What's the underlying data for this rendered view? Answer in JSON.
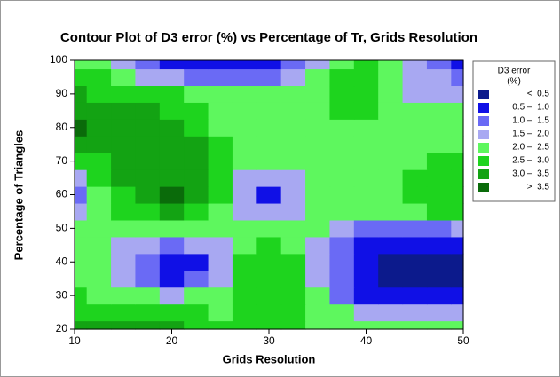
{
  "chart_data": {
    "type": "contour",
    "title": "Contour Plot of D3 error (%) vs Percentage of Tr, Grids Resolution",
    "x_label": "Grids Resolution",
    "y_label": "Percentage of Triangles",
    "xlim": [
      10,
      50
    ],
    "ylim": [
      20,
      100
    ],
    "xticks": [
      10,
      20,
      30,
      40,
      50
    ],
    "yticks": [
      20,
      30,
      40,
      50,
      60,
      70,
      80,
      90,
      100
    ],
    "x": [
      10,
      12.5,
      15,
      17.5,
      20,
      22.5,
      25,
      27.5,
      30,
      32.5,
      35,
      37.5,
      40,
      42.5,
      45,
      47.5,
      50
    ],
    "y": [
      20,
      25,
      30,
      35,
      40,
      45,
      50,
      55,
      60,
      65,
      70,
      75,
      80,
      85,
      90,
      95,
      100
    ],
    "z": [
      [
        3.2,
        3.2,
        3.1,
        3.0,
        3.0,
        2.8,
        2.6,
        2.6,
        2.7,
        2.6,
        2.3,
        2.2,
        2.2,
        2.2,
        2.2,
        2.2,
        2.2
      ],
      [
        2.8,
        2.8,
        2.7,
        2.7,
        2.6,
        2.6,
        2.4,
        2.6,
        2.7,
        2.6,
        2.3,
        2.0,
        1.8,
        1.8,
        1.8,
        1.8,
        1.8
      ],
      [
        2.5,
        2.3,
        2.1,
        2.0,
        1.9,
        2.0,
        2.2,
        2.6,
        2.8,
        2.6,
        2.0,
        1.4,
        0.9,
        0.8,
        0.7,
        0.7,
        0.7
      ],
      [
        2.4,
        2.1,
        1.8,
        1.2,
        0.9,
        1.2,
        1.8,
        2.5,
        2.8,
        2.6,
        1.8,
        1.2,
        0.6,
        0.4,
        0.3,
        0.3,
        0.3
      ],
      [
        2.3,
        2.0,
        1.6,
        1.0,
        0.7,
        0.9,
        1.7,
        2.5,
        2.8,
        2.5,
        1.7,
        1.1,
        0.5,
        0.3,
        0.2,
        0.2,
        0.3
      ],
      [
        2.2,
        2.0,
        1.8,
        1.5,
        1.4,
        1.5,
        1.9,
        2.4,
        2.6,
        2.4,
        1.8,
        1.2,
        0.8,
        0.7,
        0.7,
        0.7,
        0.8
      ],
      [
        2.3,
        2.2,
        2.2,
        2.1,
        2.1,
        2.2,
        2.2,
        2.2,
        2.1,
        2.1,
        2.0,
        1.6,
        1.4,
        1.4,
        1.4,
        1.4,
        1.5
      ],
      [
        1.6,
        2.2,
        2.6,
        2.8,
        3.0,
        2.8,
        2.4,
        1.8,
        1.5,
        1.6,
        2.0,
        2.2,
        2.2,
        2.2,
        2.3,
        2.5,
        2.6
      ],
      [
        1.4,
        2.3,
        2.8,
        3.2,
        3.6,
        3.1,
        2.6,
        1.6,
        0.9,
        1.5,
        2.0,
        2.3,
        2.3,
        2.4,
        2.6,
        2.7,
        2.8
      ],
      [
        1.7,
        2.5,
        3.0,
        3.3,
        3.4,
        3.1,
        2.6,
        1.8,
        1.5,
        1.8,
        2.2,
        2.3,
        2.3,
        2.4,
        2.6,
        2.7,
        2.7
      ],
      [
        2.6,
        2.9,
        3.2,
        3.3,
        3.3,
        3.1,
        2.6,
        2.2,
        2.1,
        2.2,
        2.3,
        2.3,
        2.3,
        2.3,
        2.4,
        2.6,
        2.6
      ],
      [
        3.3,
        3.3,
        3.2,
        3.2,
        3.2,
        3.0,
        2.5,
        2.2,
        2.2,
        2.2,
        2.2,
        2.2,
        2.2,
        2.2,
        2.2,
        2.2,
        2.4
      ],
      [
        3.6,
        3.4,
        3.2,
        3.2,
        3.1,
        2.8,
        2.4,
        2.2,
        2.1,
        2.1,
        2.1,
        2.3,
        2.3,
        2.2,
        2.1,
        2.1,
        2.2
      ],
      [
        3.3,
        3.2,
        3.1,
        3.0,
        2.9,
        2.6,
        2.3,
        2.1,
        2.1,
        2.1,
        2.2,
        2.7,
        2.7,
        2.4,
        2.0,
        2.0,
        2.0
      ],
      [
        3.0,
        2.9,
        2.8,
        2.7,
        2.6,
        2.3,
        2.0,
        2.0,
        2.0,
        2.1,
        2.2,
        2.6,
        2.7,
        2.3,
        1.9,
        1.8,
        1.8
      ],
      [
        2.7,
        2.6,
        2.3,
        1.8,
        1.5,
        1.3,
        1.2,
        1.2,
        1.3,
        1.6,
        2.0,
        2.5,
        2.6,
        2.1,
        1.7,
        1.5,
        1.2
      ],
      [
        2.3,
        2.2,
        1.6,
        1.0,
        0.8,
        0.7,
        0.6,
        0.7,
        0.8,
        1.1,
        1.6,
        2.4,
        2.5,
        2.0,
        1.6,
        1.3,
        0.8
      ]
    ],
    "levels": [
      0.5,
      1.0,
      1.5,
      2.0,
      2.5,
      3.0,
      3.5
    ],
    "legend_title": [
      "D3 error",
      "(%)"
    ],
    "series": [
      {
        "name": "<  0.5",
        "color": "#0c1a8c"
      },
      {
        "name": "0.5 –  1.0",
        "color": "#1010e6"
      },
      {
        "name": "1.0 –  1.5",
        "color": "#6a6af5"
      },
      {
        "name": "1.5 –  2.0",
        "color": "#a8a8f2"
      },
      {
        "name": "2.0 –  2.5",
        "color": "#5ef75e"
      },
      {
        "name": "2.5 –  3.0",
        "color": "#1ed41e"
      },
      {
        "name": "3.0 –  3.5",
        "color": "#13a313"
      },
      {
        "name": ">  3.5",
        "color": "#0a6b0a"
      }
    ]
  }
}
